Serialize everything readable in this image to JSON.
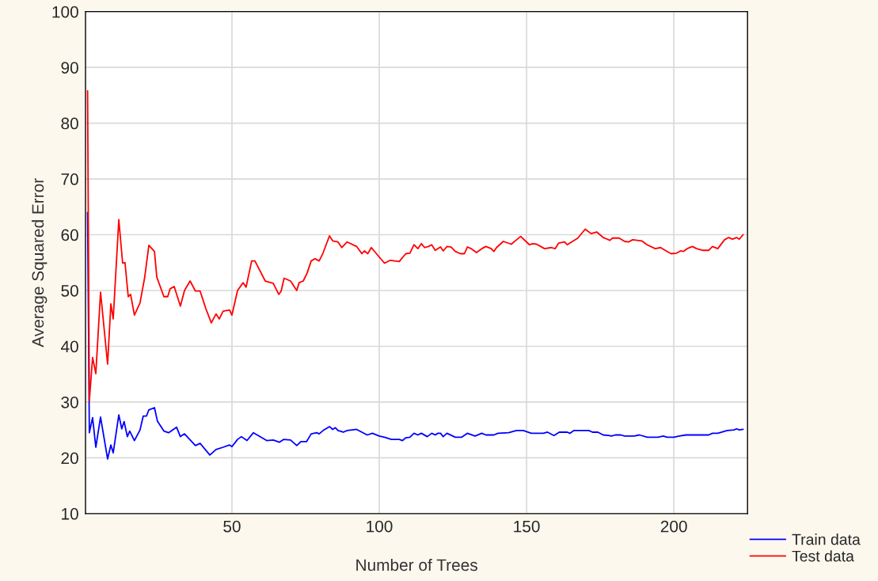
{
  "chart_data": {
    "type": "line",
    "xlabel": "Number of Trees",
    "ylabel": "Average Squared Error",
    "xlim": [
      0.3,
      225
    ],
    "xticks": [
      50,
      100,
      150,
      200
    ],
    "ylim": [
      10,
      100
    ],
    "yticks": [
      10,
      20,
      30,
      40,
      50,
      60,
      70,
      80,
      90,
      100
    ],
    "grid": true,
    "legend": "bottom right",
    "series": [
      {
        "name": "Train data",
        "color": "#0000ff",
        "x": [
          1,
          1.6,
          2.7,
          3.8,
          5.4,
          7.8,
          8.9,
          9.7,
          11.6,
          12.6,
          13.4,
          14.5,
          15.3,
          16.9,
          18.8,
          19.9,
          21,
          21.8,
          23.7,
          24.7,
          26.9,
          28.5,
          31.2,
          32.5,
          33.9,
          37.6,
          39.2,
          42.5,
          44.6,
          47,
          49.2,
          50,
          51.9,
          53.2,
          55.1,
          57.3,
          61.8,
          64,
          66.1,
          67.5,
          69.9,
          72,
          73.4,
          75.3,
          76.9,
          78.8,
          79.6,
          81.2,
          83.1,
          84.2,
          85.1,
          86,
          87.8,
          89.1,
          92.3,
          95.9,
          97.7,
          100,
          101.8,
          104.1,
          106.8,
          107.9,
          109,
          110.4,
          111.8,
          113.1,
          114.3,
          116.3,
          117.8,
          119,
          119.9,
          120.8,
          121.7,
          123,
          125.8,
          128,
          129.9,
          132.5,
          134.8,
          136.2,
          138.9,
          140.3,
          143.9,
          146.6,
          148.9,
          151.6,
          155.7,
          157.1,
          159.3,
          161.1,
          163.8,
          164.7,
          166.1,
          171.1,
          172.4,
          174.2,
          176,
          177.9,
          178.8,
          180.1,
          182,
          183.3,
          186.5,
          188.3,
          191,
          194.6,
          196.4,
          197.7,
          200,
          201.8,
          204.1,
          211.8,
          213.1,
          214.9,
          218.1,
          220.4,
          221.3,
          222.2,
          223.5
        ],
        "values": [
          64,
          24.5,
          27.2,
          21.9,
          27.3,
          19.8,
          22.3,
          20.9,
          27.7,
          25.2,
          26.5,
          23.8,
          24.8,
          23.1,
          25,
          27.5,
          27.5,
          28.6,
          29,
          26.6,
          24.8,
          24.5,
          25.5,
          23.8,
          24.3,
          22.2,
          22.6,
          20.5,
          21.5,
          21.9,
          22.3,
          22,
          23.3,
          23.8,
          23.1,
          24.5,
          23.1,
          23.2,
          22.8,
          23.3,
          23.2,
          22.2,
          22.9,
          22.9,
          24.3,
          24.5,
          24.3,
          25,
          25.6,
          25.1,
          25.4,
          24.9,
          24.6,
          24.9,
          25.1,
          24.1,
          24.4,
          23.9,
          23.7,
          23.3,
          23.3,
          23.1,
          23.6,
          23.7,
          24.4,
          24.1,
          24.4,
          23.8,
          24.4,
          24.1,
          24.4,
          24.4,
          23.8,
          24.4,
          23.7,
          23.7,
          24.4,
          23.9,
          24.4,
          24.1,
          24.1,
          24.4,
          24.5,
          24.9,
          24.9,
          24.4,
          24.4,
          24.6,
          24,
          24.6,
          24.6,
          24.4,
          24.9,
          24.9,
          24.6,
          24.6,
          24.1,
          24,
          23.9,
          24.1,
          24.1,
          23.9,
          23.9,
          24.1,
          23.7,
          23.7,
          23.9,
          23.7,
          23.7,
          23.9,
          24.1,
          24.1,
          24.4,
          24.4,
          24.9,
          25,
          25.2,
          25,
          25.1
        ]
      },
      {
        "name": "Test data",
        "color": "#ff0000",
        "x": [
          1,
          1.6,
          2.7,
          3.8,
          5.4,
          7.8,
          8.9,
          9.7,
          11.6,
          12.9,
          13.7,
          14.8,
          15.6,
          16.9,
          18.8,
          20.4,
          21.8,
          23.7,
          24.5,
          26.9,
          28.2,
          29,
          30.4,
          32.5,
          33.9,
          35.8,
          37.6,
          39.2,
          41.1,
          43,
          44.6,
          45.7,
          47,
          49.2,
          50,
          51.9,
          53.8,
          54.8,
          56.7,
          57.8,
          61.3,
          64,
          65.9,
          66.7,
          67.7,
          69.9,
          72,
          72.8,
          74.2,
          75.5,
          76.9,
          78.2,
          79.6,
          80.9,
          83.1,
          84.2,
          86,
          87.3,
          89.1,
          92.3,
          94.1,
          95,
          96.1,
          97.3,
          100,
          101.8,
          103.6,
          106.8,
          109,
          110.4,
          111.8,
          113.1,
          114.3,
          115.4,
          116.7,
          117.8,
          119,
          120.8,
          121.7,
          123,
          124.4,
          125.8,
          127.6,
          128.9,
          129.9,
          131.2,
          133,
          134.8,
          136.2,
          138,
          138.9,
          139.8,
          142.1,
          144.8,
          146.4,
          148,
          151,
          152.1,
          153.4,
          156.1,
          158.4,
          159.7,
          160.9,
          162.9,
          163.8,
          167.4,
          169.9,
          171.9,
          173.8,
          176,
          178.3,
          179.2,
          181.4,
          183.3,
          184.6,
          186,
          189.1,
          190.9,
          193.7,
          195.5,
          197.7,
          199.1,
          200.9,
          202.3,
          203.2,
          204.5,
          206.3,
          207.7,
          209.9,
          211.8,
          213.1,
          214.9,
          217.2,
          218.6,
          219.9,
          221.3,
          222.2,
          223.5
        ],
        "values": [
          85.8,
          30.2,
          38,
          35.1,
          49.7,
          36.8,
          47.6,
          44.9,
          62.7,
          54.9,
          55,
          48.9,
          49.3,
          45.6,
          47.8,
          52.4,
          58.1,
          57,
          52.4,
          48.9,
          48.9,
          50.3,
          50.7,
          47.2,
          50,
          51.7,
          49.9,
          49.9,
          46.8,
          44.2,
          45.8,
          44.9,
          46.3,
          46.5,
          45.6,
          50,
          51.4,
          50.6,
          55.3,
          55.3,
          51.7,
          51.3,
          49.3,
          49.9,
          52.2,
          51.7,
          50,
          51.4,
          51.7,
          53.1,
          55.3,
          55.7,
          55.3,
          56.7,
          59.8,
          58.9,
          58.7,
          57.7,
          58.7,
          57.9,
          56.6,
          57.1,
          56.6,
          57.7,
          56,
          54.9,
          55.4,
          55.2,
          56.6,
          56.7,
          58.2,
          57.5,
          58.4,
          57.7,
          57.9,
          58.2,
          57.2,
          57.8,
          57.1,
          57.9,
          57.8,
          57,
          56.6,
          56.6,
          57.8,
          57.5,
          56.8,
          57.5,
          57.9,
          57.5,
          57,
          57.7,
          58.8,
          58.3,
          59,
          59.7,
          58.2,
          58.4,
          58.3,
          57.5,
          57.7,
          57.5,
          58.5,
          58.7,
          58.2,
          59.4,
          61,
          60.2,
          60.5,
          59.5,
          59,
          59.4,
          59.4,
          58.8,
          58.7,
          59.1,
          58.9,
          58.2,
          57.5,
          57.7,
          57,
          56.6,
          56.7,
          57.1,
          57,
          57.5,
          57.9,
          57.5,
          57.2,
          57.2,
          57.9,
          57.5,
          59.1,
          59.5,
          59.2,
          59.5,
          59.2,
          60
        ]
      }
    ]
  }
}
